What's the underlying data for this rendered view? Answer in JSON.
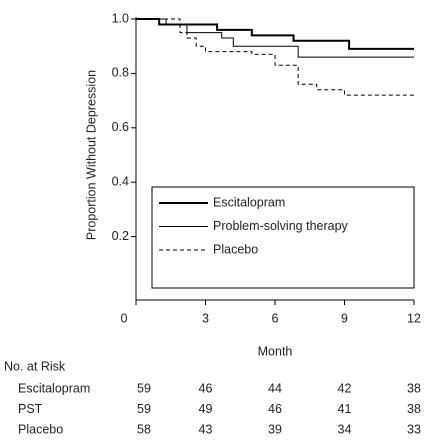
{
  "chart_data": {
    "type": "step",
    "x_label": "Month",
    "y_label": "Proportion Without Depression",
    "xlim": [
      0,
      12
    ],
    "xticks": [
      0,
      3,
      6,
      9,
      12
    ],
    "ylim": [
      0,
      1.0
    ],
    "yticks": [
      0.2,
      0.4,
      0.6,
      0.8,
      {
        "value": 1.0,
        "label": "1.0"
      }
    ],
    "legend": "lower right",
    "series": [
      {
        "name": "Escitalopram",
        "color": "#000000",
        "line_width": 2,
        "dashed": false,
        "x": [
          0,
          1,
          3.5,
          5,
          6.8,
          9.2,
          12
        ],
        "values": [
          1.0,
          0.98,
          0.96,
          0.94,
          0.92,
          0.89,
          0.89
        ]
      },
      {
        "name": "Problem-solving therapy",
        "color": "#000000",
        "line_width": 1,
        "dashed": false,
        "x": [
          0,
          1.3,
          2.2,
          3.7,
          4.2,
          7,
          12
        ],
        "values": [
          1.0,
          0.98,
          0.95,
          0.93,
          0.9,
          0.86,
          0.86
        ]
      },
      {
        "name": "Placebo",
        "color": "#000000",
        "line_width": 1,
        "dashed": true,
        "x": [
          0,
          1.9,
          2.2,
          2.6,
          3,
          5,
          6,
          7,
          7.8,
          9,
          12
        ],
        "values": [
          1.0,
          0.95,
          0.93,
          0.9,
          0.88,
          0.87,
          0.83,
          0.76,
          0.74,
          0.72,
          0.72
        ]
      }
    ]
  },
  "risk_table": {
    "title": "No. at Risk",
    "rows": [
      {
        "name": "Escitalopram",
        "values": [
          59,
          46,
          44,
          42,
          38
        ]
      },
      {
        "name": "PST",
        "values": [
          59,
          49,
          46,
          41,
          38
        ]
      },
      {
        "name": "Placebo",
        "values": [
          58,
          43,
          39,
          34,
          33
        ]
      }
    ]
  }
}
